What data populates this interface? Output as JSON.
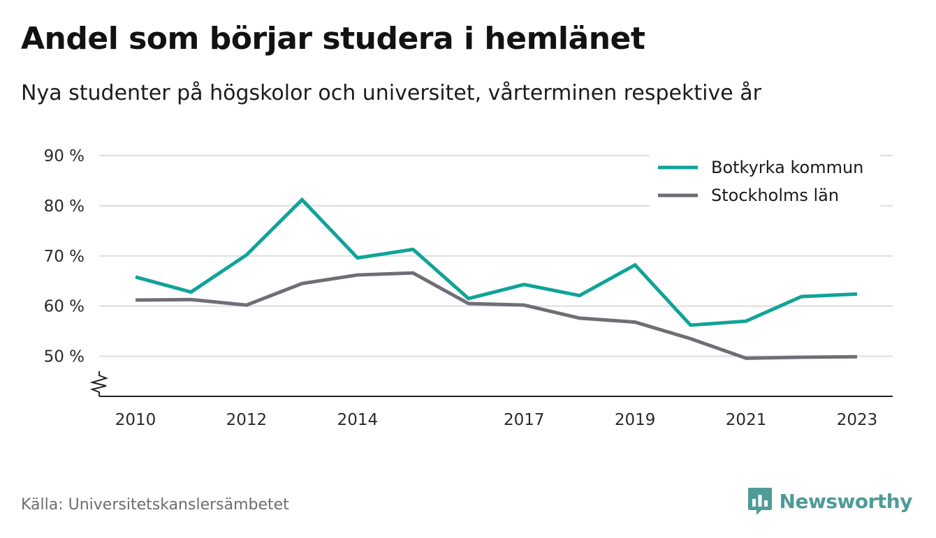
{
  "header": {
    "title": "Andel som börjar studera i hemlänet",
    "subtitle": "Nya studenter på högskolor och universitet, vårterminen respektive år"
  },
  "footer": {
    "source": "Källa: Universitetskanslersämbetet",
    "brand": "Newsworthy",
    "brand_icon": "bar-chart-speech-icon"
  },
  "colors": {
    "teal": "#10a398",
    "gray": "#6f6e76",
    "grid": "#dddddd",
    "brand": "#4e9b98"
  },
  "chart_data": {
    "type": "line",
    "x": [
      2010,
      2011,
      2012,
      2013,
      2014,
      2015,
      2016,
      2017,
      2018,
      2019,
      2020,
      2021,
      2022,
      2023
    ],
    "x_tick_values": [
      2010,
      2012,
      2014,
      2017,
      2019,
      2021,
      2023
    ],
    "x_tick_labels": [
      "2010",
      "2012",
      "2014",
      "2017",
      "2019",
      "2021",
      "2023"
    ],
    "y_tick_values": [
      50,
      60,
      70,
      80,
      90
    ],
    "y_tick_labels": [
      "50 %",
      "60 %",
      "70 %",
      "80 %",
      "90 %"
    ],
    "ylim": [
      42,
      90
    ],
    "y_axis_break": true,
    "grid": true,
    "legend_position": "top-right",
    "series": [
      {
        "name": "Botkyrka kommun",
        "color": "#10a398",
        "values": [
          65.8,
          62.8,
          70.2,
          81.2,
          69.6,
          71.3,
          61.5,
          64.3,
          62.1,
          68.2,
          56.2,
          57.0,
          61.9,
          62.4
        ]
      },
      {
        "name": "Stockholms län",
        "color": "#6f6e76",
        "values": [
          61.2,
          61.3,
          60.2,
          64.5,
          66.2,
          66.6,
          60.5,
          60.2,
          57.6,
          56.8,
          53.5,
          49.6,
          49.8,
          49.9
        ]
      }
    ]
  }
}
